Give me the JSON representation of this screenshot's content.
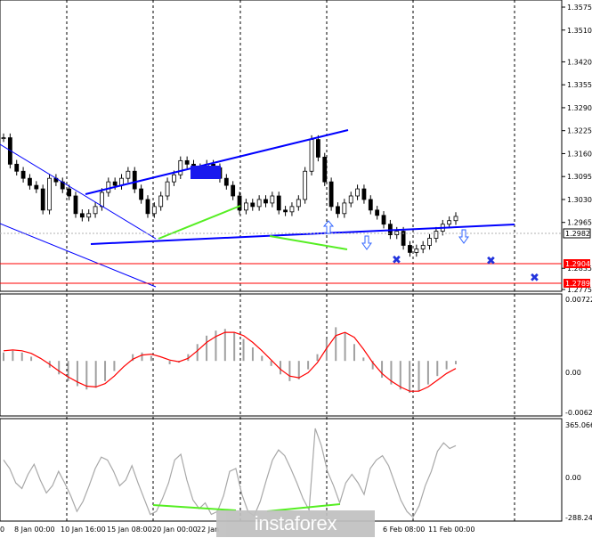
{
  "chart_data": [
    {
      "type": "candlestick",
      "panel": "price",
      "ylim": [
        1.2775,
        1.36
      ],
      "y_ticks": [
        "1.3575",
        "1.3510",
        "1.3420",
        "1.3355",
        "1.3290",
        "1.3225",
        "1.3160",
        "1.3095",
        "1.3030",
        "1.2965",
        "1.2835",
        "1.2775"
      ],
      "price_labels": [
        {
          "text": "1.2982",
          "value": 1.2982,
          "color": "#000000",
          "bg": "#ffffff"
        },
        {
          "text": "1.2904",
          "value": 1.2904,
          "color": "#ffffff",
          "bg": "#ff0000"
        },
        {
          "text": "1.2789",
          "value": 1.2789,
          "color": "#ffffff",
          "bg": "#ff0000"
        }
      ],
      "close_path": [
        1.3205,
        1.313,
        1.311,
        1.309,
        1.307,
        1.306,
        1.3,
        1.309,
        1.308,
        1.306,
        1.304,
        1.299,
        1.298,
        1.299,
        1.301,
        1.305,
        1.308,
        1.307,
        1.309,
        1.311,
        1.306,
        1.303,
        1.299,
        1.301,
        1.304,
        1.308,
        1.31,
        1.314,
        1.313,
        1.312,
        1.31,
        1.313,
        1.312,
        1.309,
        1.307,
        1.304,
        1.3,
        1.302,
        1.301,
        1.303,
        1.302,
        1.304,
        1.3,
        1.2995,
        1.301,
        1.303,
        1.311,
        1.32,
        1.315,
        1.308,
        1.301,
        1.299,
        1.302,
        1.304,
        1.306,
        1.303,
        1.3,
        1.2985,
        1.296,
        1.293,
        1.294,
        1.29,
        1.288,
        1.289,
        1.29,
        1.292,
        1.294,
        1.296,
        1.297,
        1.2982
      ]
    },
    {
      "type": "histogram+line",
      "panel": "macd",
      "y_ticks": [
        "0.00722",
        "0.00",
        "-0.00623"
      ],
      "values": [
        0.001,
        0.0012,
        0.001,
        0.0005,
        0.0,
        -0.0008,
        -0.0016,
        -0.0024,
        -0.003,
        -0.0034,
        -0.0032,
        -0.0024,
        -0.0012,
        0.0,
        0.0008,
        0.001,
        0.0006,
        0.0,
        -0.0004,
        -0.0002,
        0.0008,
        0.002,
        0.003,
        0.0036,
        0.0038,
        0.0034,
        0.0026,
        0.0016,
        0.0006,
        -0.0006,
        -0.0016,
        -0.0024,
        -0.0022,
        -0.001,
        0.0008,
        0.0026,
        0.004,
        0.0034,
        0.002,
        0.0004,
        -0.001,
        -0.002,
        -0.0028,
        -0.0034,
        -0.0038,
        -0.0036,
        -0.0028,
        -0.0018,
        -0.001,
        -0.0004
      ],
      "signal": [
        0.0012,
        0.0013,
        0.0012,
        0.0009,
        0.0003,
        -0.0004,
        -0.0012,
        -0.0019,
        -0.0025,
        -0.003,
        -0.0031,
        -0.0027,
        -0.0018,
        -0.0007,
        0.0002,
        0.0007,
        0.0008,
        0.0005,
        0.0001,
        -0.0001,
        0.0003,
        0.0012,
        0.0022,
        0.0029,
        0.0034,
        0.0034,
        0.003,
        0.0022,
        0.0012,
        0.0001,
        -0.001,
        -0.0018,
        -0.002,
        -0.0014,
        -0.0002,
        0.0015,
        0.003,
        0.0034,
        0.0028,
        0.0014,
        -0.0002,
        -0.0015,
        -0.0024,
        -0.0031,
        -0.0036,
        -0.0036,
        -0.0031,
        -0.0023,
        -0.0015,
        -0.0009
      ]
    },
    {
      "type": "line",
      "panel": "cci",
      "y_ticks": [
        "365.0666",
        "0.00",
        "-288.242"
      ],
      "ylim": [
        -288.242,
        365.0666
      ],
      "values": [
        120,
        60,
        -40,
        -80,
        20,
        90,
        -20,
        -110,
        -60,
        40,
        -40,
        -130,
        -240,
        -170,
        -60,
        60,
        140,
        120,
        40,
        -60,
        -20,
        80,
        -40,
        -150,
        -260,
        -240,
        -150,
        -40,
        120,
        160,
        -20,
        -160,
        -220,
        -180,
        -260,
        -240,
        -130,
        40,
        60,
        -120,
        -240,
        -270,
        -170,
        -20,
        120,
        190,
        150,
        60,
        -40,
        -150,
        -230,
        340,
        220,
        40,
        -60,
        -180,
        -40,
        20,
        -40,
        -120,
        60,
        120,
        150,
        80,
        -40,
        -160,
        -240,
        -280,
        -200,
        -60,
        40,
        180,
        240,
        200,
        220
      ]
    }
  ],
  "x_labels": [
    "0",
    "8 Jan 00:00",
    "10 Jan 16:00",
    "15 Jan 08:00",
    "20 Jan 00:00",
    "22 Jan",
    "6 Feb 08:00",
    "11 Feb 00:00"
  ],
  "watermark": "instaforex",
  "colors": {
    "price_line": "#000000",
    "trend": "#0000ff",
    "channel": "#0000ff",
    "divergence": "#55ee22",
    "level": "#ff0000",
    "signal": "#ff0000",
    "histogram": "#a0a0a0",
    "cci_line": "#a8a8a8"
  }
}
